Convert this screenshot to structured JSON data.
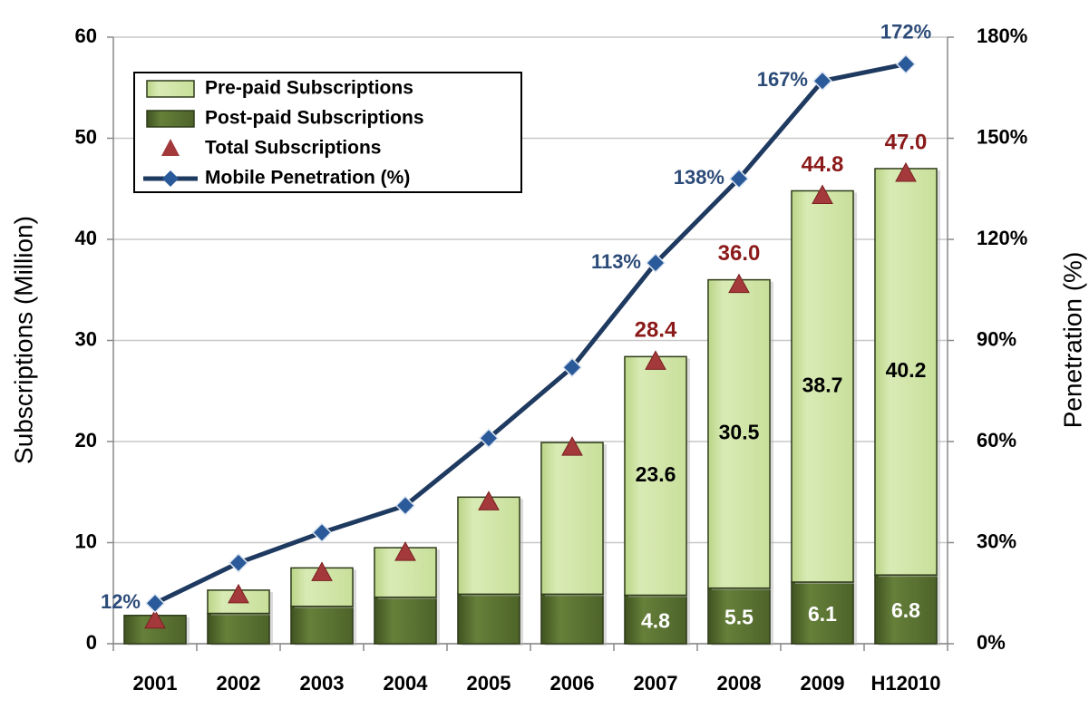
{
  "chart_data": {
    "type": "bar",
    "stacked": true,
    "y_label": "Subscriptions (Million)",
    "y2_label": "Penetration (%)",
    "categories": [
      "2001",
      "2002",
      "2003",
      "2004",
      "2005",
      "2006",
      "2007",
      "2008",
      "2009",
      "H12010"
    ],
    "series": [
      {
        "name": "Pre-paid Subscriptions",
        "type": "bar",
        "color": "#cfe3a3",
        "values": [
          0,
          2.3,
          3.8,
          4.9,
          9.6,
          15.0,
          23.6,
          30.5,
          38.7,
          40.2
        ],
        "value_labels": [
          null,
          null,
          null,
          null,
          null,
          null,
          "23.6",
          "30.5",
          "38.7",
          "40.2"
        ]
      },
      {
        "name": "Post-paid Subscriptions",
        "type": "bar",
        "color": "#556b2f",
        "values": [
          2.8,
          3.0,
          3.7,
          4.6,
          4.9,
          4.9,
          4.8,
          5.5,
          6.1,
          6.8
        ],
        "value_labels": [
          null,
          null,
          null,
          null,
          null,
          null,
          "4.8",
          "5.5",
          "6.1",
          "6.8"
        ]
      },
      {
        "name": "Total Subscriptions",
        "type": "scatter",
        "color": "#a3393b",
        "values": [
          2.8,
          5.3,
          7.5,
          9.5,
          14.5,
          19.9,
          28.4,
          36.0,
          44.8,
          47.0
        ],
        "value_labels": [
          null,
          null,
          null,
          null,
          null,
          null,
          "28.4",
          "36.0",
          "44.8",
          "47.0"
        ]
      },
      {
        "name": "Mobile Penetration  (%)",
        "type": "line",
        "axis": "y2",
        "color": "#1f3a60",
        "values": [
          12,
          24,
          33,
          41,
          61,
          82,
          113,
          138,
          167,
          172
        ],
        "value_labels": [
          "12%",
          null,
          null,
          null,
          null,
          null,
          "113%",
          "138%",
          "167%",
          "172%"
        ]
      }
    ],
    "ylim": [
      0,
      60
    ],
    "yticks": [
      0,
      10,
      20,
      30,
      40,
      50,
      60
    ],
    "y2lim": [
      0,
      180
    ],
    "y2ticks": [
      {
        "value": 0,
        "label": "0%"
      },
      {
        "value": 30,
        "label": "30%"
      },
      {
        "value": 60,
        "label": "60%"
      },
      {
        "value": 90,
        "label": "90%"
      },
      {
        "value": 120,
        "label": "120%"
      },
      {
        "value": 150,
        "label": "150%"
      },
      {
        "value": 180,
        "label": "180%"
      }
    ],
    "grid": true,
    "legend": "upper left"
  }
}
